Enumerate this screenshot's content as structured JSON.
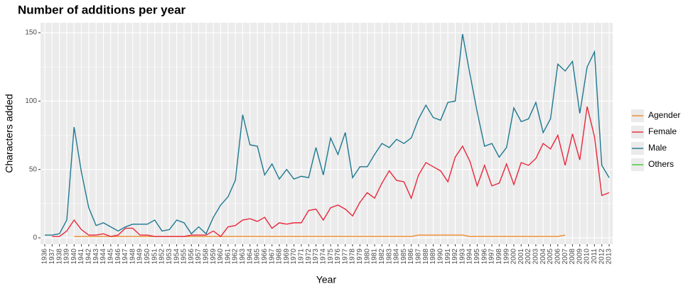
{
  "chart_data": {
    "type": "line",
    "title": "Number of additions per year",
    "x_label": "Year",
    "y_label": "Characters added",
    "categories": [
      1936,
      1937,
      1938,
      1939,
      1940,
      1941,
      1942,
      1943,
      1944,
      1945,
      1946,
      1947,
      1948,
      1949,
      1950,
      1951,
      1952,
      1953,
      1954,
      1955,
      1956,
      1957,
      1958,
      1959,
      1960,
      1961,
      1962,
      1963,
      1964,
      1965,
      1966,
      1967,
      1968,
      1969,
      1970,
      1971,
      1972,
      1973,
      1974,
      1975,
      1976,
      1977,
      1978,
      1979,
      1980,
      1981,
      1982,
      1983,
      1984,
      1985,
      1986,
      1987,
      1988,
      1989,
      1990,
      1991,
      1992,
      1993,
      1994,
      1995,
      1996,
      1997,
      1998,
      1999,
      2000,
      2001,
      2002,
      2003,
      2004,
      2005,
      2006,
      2007,
      2008,
      2009,
      2010,
      2011,
      2012,
      2013
    ],
    "series": [
      {
        "name": "Agender",
        "color": "#f0892a",
        "values": [
          null,
          null,
          null,
          null,
          1,
          1,
          1,
          1,
          1,
          1,
          1,
          1,
          1,
          1,
          1,
          1,
          1,
          1,
          1,
          1,
          1,
          1,
          1,
          1,
          1,
          1,
          1,
          1,
          1,
          1,
          1,
          1,
          1,
          1,
          1,
          1,
          1,
          1,
          1,
          1,
          1,
          1,
          1,
          1,
          1,
          1,
          1,
          1,
          1,
          1,
          1,
          2,
          2,
          2,
          2,
          2,
          2,
          2,
          1,
          1,
          1,
          1,
          1,
          1,
          1,
          1,
          1,
          1,
          1,
          1,
          1,
          2,
          null,
          null,
          null,
          null,
          null,
          null
        ]
      },
      {
        "name": "Female",
        "color": "#e8283c",
        "values": [
          null,
          1,
          1,
          5,
          13,
          6,
          2,
          2,
          3,
          1,
          2,
          7,
          7,
          2,
          2,
          1,
          1,
          1,
          1,
          1,
          2,
          2,
          2,
          5,
          1,
          8,
          9,
          13,
          14,
          12,
          15,
          7,
          11,
          10,
          11,
          11,
          20,
          21,
          13,
          22,
          24,
          21,
          16,
          26,
          33,
          29,
          40,
          49,
          42,
          41,
          29,
          46,
          55,
          52,
          49,
          41,
          59,
          67,
          56,
          38,
          53,
          38,
          40,
          54,
          39,
          55,
          53,
          58,
          69,
          65,
          75,
          53,
          76,
          57,
          96,
          74,
          31,
          33
        ]
      },
      {
        "name": "Male",
        "color": "#1f7891",
        "values": [
          2,
          2,
          3,
          13,
          81,
          48,
          22,
          9,
          11,
          8,
          5,
          8,
          10,
          10,
          10,
          13,
          5,
          6,
          13,
          11,
          3,
          8,
          3,
          15,
          24,
          30,
          42,
          90,
          68,
          67,
          46,
          54,
          43,
          50,
          43,
          45,
          44,
          66,
          46,
          73,
          61,
          77,
          44,
          52,
          52,
          61,
          69,
          66,
          72,
          69,
          73,
          87,
          97,
          88,
          86,
          99,
          100,
          149,
          120,
          92,
          67,
          69,
          59,
          66,
          95,
          85,
          87,
          99,
          77,
          87,
          127,
          122,
          129,
          91,
          125,
          136,
          53,
          44
        ]
      },
      {
        "name": "Others",
        "color": "#3ec92f",
        "values": [
          null,
          null,
          null,
          null,
          null,
          null,
          null,
          null,
          null,
          null,
          null,
          null,
          null,
          null,
          null,
          null,
          null,
          null,
          null,
          null,
          null,
          null,
          null,
          null,
          null,
          null,
          null,
          null,
          null,
          null,
          null,
          null,
          null,
          null,
          null,
          null,
          null,
          null,
          null,
          null,
          null,
          null,
          null,
          null,
          null,
          null,
          null,
          null,
          null,
          null,
          null,
          null,
          null,
          null,
          null,
          null,
          null,
          null,
          null,
          null,
          null,
          null,
          null,
          null,
          null,
          null,
          null,
          null,
          null,
          null,
          null,
          null,
          null,
          null,
          null,
          null,
          null,
          null
        ]
      }
    ],
    "ylim": [
      -4.7,
      157.3
    ],
    "yticks": [
      0,
      50,
      100,
      150
    ],
    "grid": true,
    "legend": "right"
  }
}
